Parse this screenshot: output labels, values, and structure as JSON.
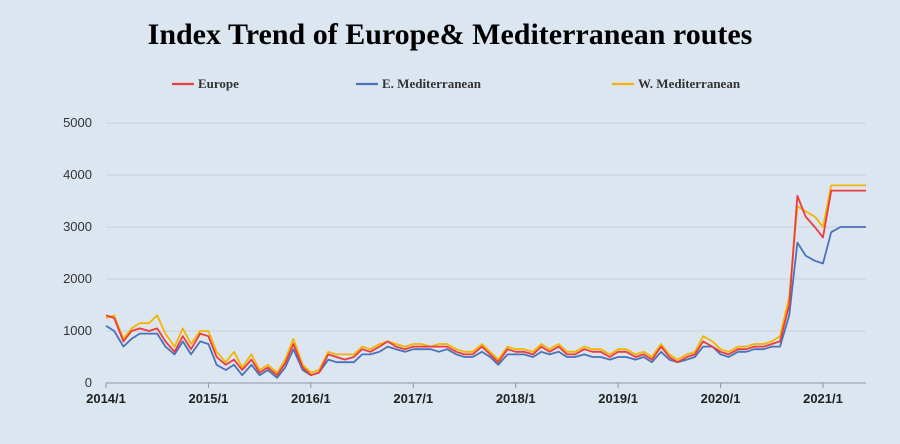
{
  "chart_data": {
    "type": "line",
    "title": "Index Trend of Europe& Mediterranean routes",
    "xlabel": "",
    "ylabel": "",
    "ylim": [
      0,
      5000
    ],
    "yticks": [
      "0",
      "1000",
      "2000",
      "3000",
      "4000",
      "5000"
    ],
    "xlim": [
      2014.0,
      2021.42
    ],
    "xticks": [
      {
        "label": "2014/1",
        "value": 2014.0
      },
      {
        "label": "2015/1",
        "value": 2015.0
      },
      {
        "label": "2016/1",
        "value": 2016.0
      },
      {
        "label": "2017/1",
        "value": 2017.0
      },
      {
        "label": "2018/1",
        "value": 2018.0
      },
      {
        "label": "2019/1",
        "value": 2019.0
      },
      {
        "label": "2020/1",
        "value": 2020.0
      },
      {
        "label": "2021/1",
        "value": 2021.0
      }
    ],
    "grid": true,
    "legend": "top",
    "x": [
      2014.0,
      2014.08,
      2014.17,
      2014.25,
      2014.33,
      2014.42,
      2014.5,
      2014.58,
      2014.67,
      2014.75,
      2014.83,
      2014.92,
      2015.0,
      2015.08,
      2015.17,
      2015.25,
      2015.33,
      2015.42,
      2015.5,
      2015.58,
      2015.67,
      2015.75,
      2015.83,
      2015.92,
      2016.0,
      2016.08,
      2016.17,
      2016.25,
      2016.33,
      2016.42,
      2016.5,
      2016.58,
      2016.67,
      2016.75,
      2016.83,
      2016.92,
      2017.0,
      2017.08,
      2017.17,
      2017.25,
      2017.33,
      2017.42,
      2017.5,
      2017.58,
      2017.67,
      2017.75,
      2017.83,
      2017.92,
      2018.0,
      2018.08,
      2018.17,
      2018.25,
      2018.33,
      2018.42,
      2018.5,
      2018.58,
      2018.67,
      2018.75,
      2018.83,
      2018.92,
      2019.0,
      2019.08,
      2019.17,
      2019.25,
      2019.33,
      2019.42,
      2019.5,
      2019.58,
      2019.67,
      2019.75,
      2019.83,
      2019.92,
      2020.0,
      2020.08,
      2020.17,
      2020.25,
      2020.33,
      2020.42,
      2020.5,
      2020.58,
      2020.67,
      2020.75,
      2020.83,
      2020.92,
      2021.0,
      2021.08,
      2021.17,
      2021.25,
      2021.33,
      2021.42
    ],
    "series": [
      {
        "name": "Europe",
        "color": "#ee3b3b",
        "values": [
          1300,
          1250,
          800,
          1000,
          1050,
          1000,
          1050,
          800,
          600,
          900,
          650,
          950,
          900,
          500,
          350,
          450,
          250,
          450,
          200,
          300,
          150,
          380,
          750,
          300,
          150,
          200,
          550,
          500,
          450,
          500,
          650,
          600,
          700,
          800,
          700,
          650,
          700,
          700,
          700,
          700,
          700,
          600,
          550,
          550,
          700,
          550,
          400,
          650,
          600,
          600,
          550,
          700,
          600,
          700,
          550,
          550,
          650,
          600,
          600,
          500,
          600,
          600,
          500,
          550,
          450,
          700,
          500,
          400,
          500,
          550,
          800,
          700,
          600,
          550,
          650,
          650,
          700,
          700,
          750,
          800,
          1500,
          3600,
          3200,
          3000,
          2800,
          3700,
          3700,
          3700,
          3700,
          3700
        ]
      },
      {
        "name": "E. Mediterranean",
        "color": "#4a72b8",
        "values": [
          1100,
          1000,
          700,
          850,
          950,
          950,
          950,
          700,
          550,
          800,
          550,
          800,
          750,
          350,
          250,
          350,
          150,
          350,
          150,
          250,
          100,
          300,
          650,
          250,
          150,
          200,
          450,
          400,
          400,
          400,
          550,
          550,
          600,
          700,
          650,
          600,
          650,
          650,
          650,
          600,
          650,
          550,
          500,
          500,
          600,
          500,
          350,
          550,
          550,
          550,
          500,
          600,
          550,
          600,
          500,
          500,
          550,
          500,
          500,
          450,
          500,
          500,
          450,
          500,
          400,
          600,
          450,
          400,
          450,
          500,
          700,
          700,
          550,
          500,
          600,
          600,
          650,
          650,
          700,
          700,
          1300,
          2700,
          2450,
          2350,
          2300,
          2900,
          3000,
          3000,
          3000,
          3000
        ]
      },
      {
        "name": "W. Mediterranean",
        "color": "#f5b400",
        "values": [
          1250,
          1300,
          850,
          1050,
          1150,
          1150,
          1300,
          950,
          700,
          1050,
          750,
          1000,
          1000,
          600,
          400,
          600,
          300,
          550,
          250,
          350,
          200,
          450,
          850,
          350,
          200,
          250,
          600,
          550,
          550,
          550,
          700,
          650,
          750,
          800,
          750,
          700,
          750,
          750,
          700,
          750,
          750,
          650,
          600,
          600,
          750,
          600,
          450,
          700,
          650,
          650,
          600,
          750,
          650,
          750,
          600,
          600,
          700,
          650,
          650,
          550,
          650,
          650,
          550,
          600,
          500,
          750,
          550,
          450,
          550,
          600,
          900,
          800,
          650,
          600,
          700,
          700,
          750,
          750,
          800,
          900,
          1650,
          3400,
          3300,
          3200,
          3000,
          3800,
          3800,
          3800,
          3800,
          3800
        ]
      }
    ]
  }
}
